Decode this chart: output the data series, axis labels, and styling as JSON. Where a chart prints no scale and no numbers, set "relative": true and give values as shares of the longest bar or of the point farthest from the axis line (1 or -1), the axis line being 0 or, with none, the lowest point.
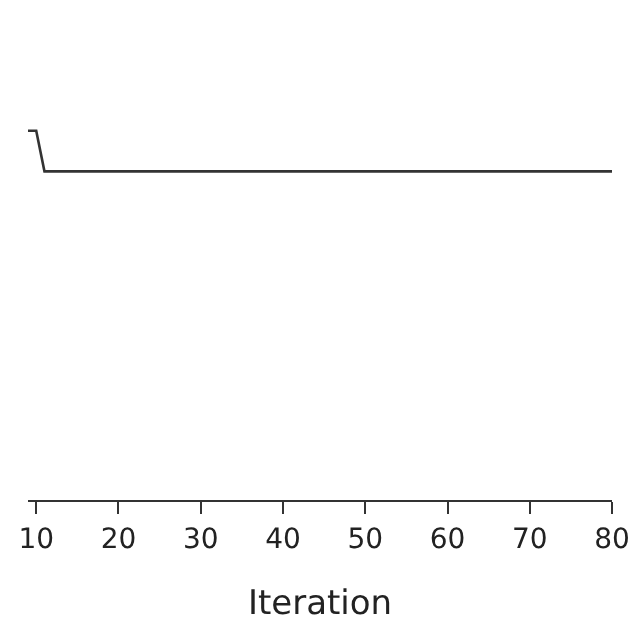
{
  "chart_data": {
    "type": "line",
    "xlabel": "Iteration",
    "relative": true,
    "series": [
      {
        "color": "#333333",
        "x": [
          9,
          10,
          11,
          80
        ],
        "values": [
          1,
          1,
          0.89,
          0.89
        ]
      }
    ],
    "xlim": [
      9,
      80
    ],
    "xticks": [
      10,
      20,
      30,
      40,
      50,
      60,
      70,
      80
    ],
    "marker": "none",
    "line_style": "solid"
  }
}
